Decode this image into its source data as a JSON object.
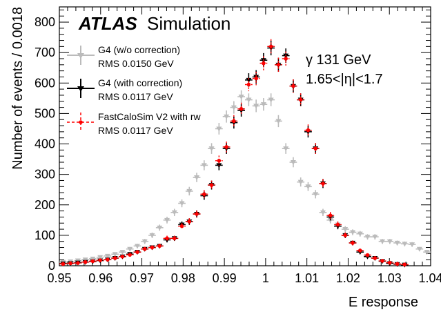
{
  "chart_data": {
    "type": "scatter",
    "xlabel": "E response",
    "ylabel": "Number of events / 0.0018",
    "xlim": [
      0.95,
      1.04
    ],
    "ylim": [
      0,
      850
    ],
    "x_tick_labels": [
      "0.95",
      "0.96",
      "0.97",
      "0.98",
      "0.99",
      "1",
      "1.01",
      "1.02",
      "1.03",
      "1.04"
    ],
    "y_tick_labels": [
      "0",
      "100",
      "200",
      "300",
      "400",
      "500",
      "600",
      "700",
      "800"
    ],
    "grid": false,
    "legend_position": "top-left",
    "experiment_label": "ATLAS",
    "experiment_sublabel": "Simulation",
    "annotations": [
      "γ 131 GeV",
      "1.65<|η|<1.7"
    ],
    "series": [
      {
        "name": "G4 (w/o correction)",
        "rms_label": "RMS 0.0150 GeV",
        "color": "#bbbbbb",
        "marker": "triangle-down",
        "x": [
          0.9509,
          0.9527,
          0.9545,
          0.9563,
          0.9581,
          0.9599,
          0.9617,
          0.9635,
          0.9653,
          0.9671,
          0.9689,
          0.9707,
          0.9725,
          0.9743,
          0.9761,
          0.9779,
          0.9797,
          0.9815,
          0.9833,
          0.9851,
          0.9869,
          0.9887,
          0.9905,
          0.9923,
          0.9941,
          0.9959,
          0.9977,
          0.9995,
          1.0013,
          1.0031,
          1.0049,
          1.0067,
          1.0085,
          1.0103,
          1.0121,
          1.0139,
          1.0157,
          1.0175,
          1.0193,
          1.0211,
          1.0229,
          1.0247,
          1.0265,
          1.0283,
          1.0301,
          1.0319,
          1.0337,
          1.0355,
          1.0373,
          1.0391
        ],
        "y": [
          12,
          14,
          17,
          20,
          23,
          28,
          32,
          38,
          45,
          55,
          65,
          80,
          100,
          125,
          150,
          175,
          205,
          245,
          290,
          330,
          385,
          450,
          490,
          520,
          555,
          545,
          525,
          530,
          545,
          475,
          385,
          340,
          275,
          260,
          235,
          175,
          150,
          135,
          120,
          110,
          105,
          95,
          95,
          80,
          80,
          75,
          72,
          70,
          55,
          45
        ]
      },
      {
        "name": "G4 (with correction)",
        "rms_label": "RMS 0.0117 GeV",
        "color": "#000000",
        "marker": "triangle-down",
        "x": [
          0.9509,
          0.9527,
          0.9545,
          0.9563,
          0.9581,
          0.9599,
          0.9617,
          0.9635,
          0.9653,
          0.9671,
          0.9689,
          0.9707,
          0.9725,
          0.9743,
          0.9761,
          0.9779,
          0.9797,
          0.9815,
          0.9833,
          0.9851,
          0.9869,
          0.9887,
          0.9905,
          0.9923,
          0.9941,
          0.9959,
          0.9977,
          0.9995,
          1.0013,
          1.0031,
          1.0049,
          1.0067,
          1.0085,
          1.0103,
          1.0121,
          1.0139,
          1.0157,
          1.0175,
          1.0193,
          1.0211,
          1.0229,
          1.0247,
          1.0265,
          1.0283,
          1.0301,
          1.0319,
          1.0337
        ],
        "y": [
          7,
          8,
          10,
          12,
          14,
          17,
          20,
          25,
          30,
          38,
          45,
          55,
          60,
          65,
          85,
          90,
          135,
          145,
          170,
          230,
          265,
          330,
          385,
          470,
          510,
          610,
          620,
          675,
          715,
          660,
          690,
          590,
          545,
          440,
          385,
          270,
          160,
          130,
          100,
          75,
          45,
          30,
          25,
          15,
          8,
          5,
          3
        ]
      },
      {
        "name": "FastCaloSim V2 with rw",
        "rms_label": "RMS 0.0117 GeV",
        "color": "#ff0000",
        "marker": "circle",
        "x": [
          0.9509,
          0.9527,
          0.9545,
          0.9563,
          0.9581,
          0.9599,
          0.9617,
          0.9635,
          0.9653,
          0.9671,
          0.9689,
          0.9707,
          0.9725,
          0.9743,
          0.9761,
          0.9779,
          0.9797,
          0.9815,
          0.9833,
          0.9851,
          0.9869,
          0.9887,
          0.9905,
          0.9923,
          0.9941,
          0.9959,
          0.9977,
          0.9995,
          1.0013,
          1.0031,
          1.0049,
          1.0067,
          1.0085,
          1.0103,
          1.0121,
          1.0139,
          1.0157,
          1.0175,
          1.0193,
          1.0211,
          1.0229,
          1.0247,
          1.0265,
          1.0283,
          1.0301,
          1.0319,
          1.0337
        ],
        "y": [
          6,
          8,
          9,
          12,
          15,
          18,
          20,
          25,
          30,
          36,
          45,
          55,
          60,
          65,
          90,
          90,
          130,
          145,
          170,
          235,
          265,
          345,
          390,
          475,
          515,
          595,
          615,
          665,
          720,
          660,
          680,
          590,
          545,
          445,
          385,
          270,
          165,
          135,
          100,
          75,
          50,
          35,
          25,
          16,
          10,
          6,
          4
        ]
      }
    ]
  }
}
